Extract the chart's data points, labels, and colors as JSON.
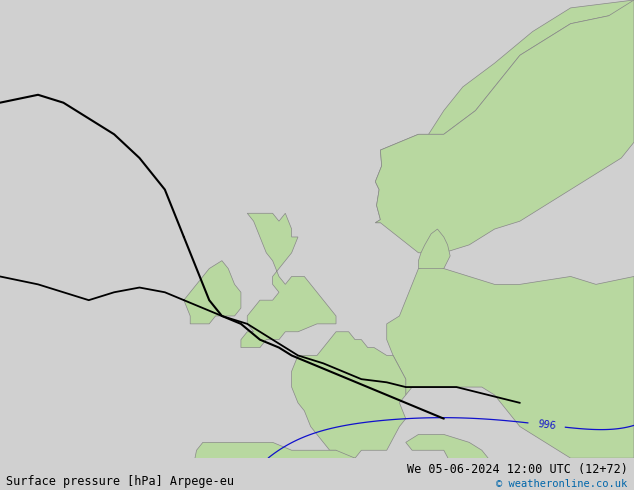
{
  "title_left": "Surface pressure [hPa] Arpege-eu",
  "title_right": "We 05-06-2024 12:00 UTC (12+72)",
  "credit": "© weatheronline.co.uk",
  "bg_color": "#d0d0d0",
  "land_color": "#b8d8a0",
  "coast_color": "#888888",
  "isobar_color_blue": "#1111cc",
  "isobar_color_black": "#000000",
  "isobar_color_red": "#cc0000",
  "text_color_bottom": "#000000",
  "text_color_right": "#0066aa",
  "font_size_bottom": 8.5,
  "font_size_credit": 7.5,
  "xlim": [
    -25,
    25
  ],
  "ylim": [
    43,
    72
  ],
  "figsize": [
    6.34,
    4.9
  ],
  "dpi": 100
}
